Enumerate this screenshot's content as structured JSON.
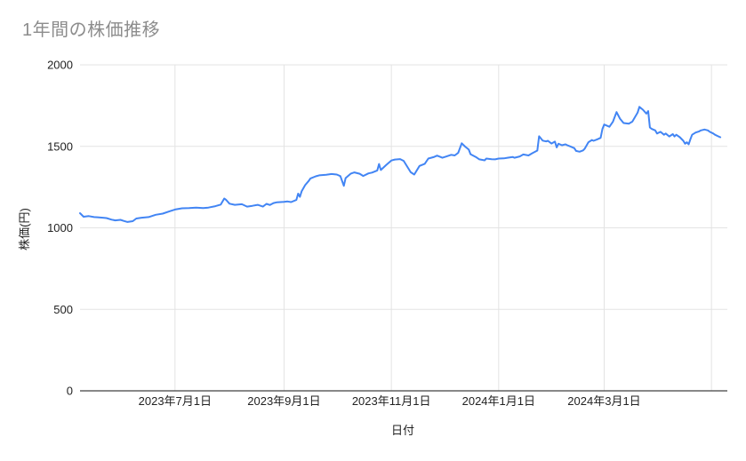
{
  "chart_data": {
    "type": "line",
    "title": "1年間の株価推移",
    "xlabel": "日付",
    "ylabel": "株価(円)",
    "ylim": [
      0,
      2000
    ],
    "y_ticks": [
      0,
      500,
      1000,
      1500,
      2000
    ],
    "x_axis_range": [
      "2023-05-08",
      "2024-05-09"
    ],
    "x_ticks": [
      {
        "date": "2023-07-01",
        "label": "2023年7月1日"
      },
      {
        "date": "2023-09-01",
        "label": "2023年9月1日"
      },
      {
        "date": "2023-11-01",
        "label": "2023年11月1日"
      },
      {
        "date": "2024-01-01",
        "label": "2024年1月1日"
      },
      {
        "date": "2024-03-01",
        "label": "2024年3月1日"
      },
      {
        "date": "2024-05-01",
        "label": ""
      }
    ],
    "grid": true,
    "legend": "none",
    "colors": {
      "line": "#4285f4",
      "grid": "#e3e3e3",
      "axis": "#424242",
      "title": "#8c8c8c",
      "tick_label": "#222222"
    },
    "series": [
      {
        "name": "株価",
        "dates": [
          "2023-05-08",
          "2023-05-10",
          "2023-05-13",
          "2023-05-16",
          "2023-05-18",
          "2023-05-21",
          "2023-05-23",
          "2023-05-26",
          "2023-05-28",
          "2023-05-31",
          "2023-06-02",
          "2023-06-04",
          "2023-06-07",
          "2023-06-09",
          "2023-06-12",
          "2023-06-16",
          "2023-06-20",
          "2023-06-24",
          "2023-06-28",
          "2023-07-01",
          "2023-07-05",
          "2023-07-09",
          "2023-07-13",
          "2023-07-17",
          "2023-07-20",
          "2023-07-24",
          "2023-07-27",
          "2023-07-29",
          "2023-07-30",
          "2023-08-01",
          "2023-08-04",
          "2023-08-08",
          "2023-08-11",
          "2023-08-14",
          "2023-08-17",
          "2023-08-20",
          "2023-08-22",
          "2023-08-24",
          "2023-08-26",
          "2023-08-28",
          "2023-09-01",
          "2023-09-03",
          "2023-09-05",
          "2023-09-08",
          "2023-09-09",
          "2023-09-10",
          "2023-09-11",
          "2023-09-13",
          "2023-09-15",
          "2023-09-16",
          "2023-09-19",
          "2023-09-21",
          "2023-09-25",
          "2023-09-28",
          "2023-10-01",
          "2023-10-03",
          "2023-10-05",
          "2023-10-06",
          "2023-10-09",
          "2023-10-11",
          "2023-10-14",
          "2023-10-16",
          "2023-10-19",
          "2023-10-21",
          "2023-10-24",
          "2023-10-25",
          "2023-10-26",
          "2023-10-29",
          "2023-11-01",
          "2023-11-03",
          "2023-11-06",
          "2023-11-08",
          "2023-11-12",
          "2023-11-14",
          "2023-11-17",
          "2023-11-20",
          "2023-11-22",
          "2023-11-25",
          "2023-11-27",
          "2023-11-30",
          "2023-12-02",
          "2023-12-05",
          "2023-12-07",
          "2023-12-09",
          "2023-12-11",
          "2023-12-13",
          "2023-12-15",
          "2023-12-16",
          "2023-12-19",
          "2023-12-21",
          "2023-12-24",
          "2023-12-25",
          "2023-12-28",
          "2023-12-30",
          "2024-01-01",
          "2024-01-04",
          "2024-01-06",
          "2024-01-09",
          "2024-01-10",
          "2024-01-13",
          "2024-01-15",
          "2024-01-18",
          "2024-01-20",
          "2024-01-23",
          "2024-01-24",
          "2024-01-26",
          "2024-01-28",
          "2024-01-29",
          "2024-01-31",
          "2024-02-02",
          "2024-02-03",
          "2024-02-04",
          "2024-02-06",
          "2024-02-08",
          "2024-02-09",
          "2024-02-11",
          "2024-02-13",
          "2024-02-14",
          "2024-02-16",
          "2024-02-18",
          "2024-02-19",
          "2024-02-21",
          "2024-02-23",
          "2024-02-24",
          "2024-02-26",
          "2024-02-28",
          "2024-02-29",
          "2024-03-01",
          "2024-03-04",
          "2024-03-06",
          "2024-03-08",
          "2024-03-10",
          "2024-03-12",
          "2024-03-15",
          "2024-03-17",
          "2024-03-20",
          "2024-03-21",
          "2024-03-23",
          "2024-03-25",
          "2024-03-26",
          "2024-03-27",
          "2024-03-28",
          "2024-03-30",
          "2024-03-31",
          "2024-04-02",
          "2024-04-04",
          "2024-04-05",
          "2024-04-07",
          "2024-04-09",
          "2024-04-10",
          "2024-04-11",
          "2024-04-13",
          "2024-04-15",
          "2024-04-16",
          "2024-04-17",
          "2024-04-18",
          "2024-04-19",
          "2024-04-20",
          "2024-04-22",
          "2024-04-24",
          "2024-04-25",
          "2024-04-27",
          "2024-04-29",
          "2024-04-30",
          "2024-05-02",
          "2024-05-03",
          "2024-05-05",
          "2024-05-06"
        ],
        "values": [
          1090,
          1068,
          1072,
          1066,
          1065,
          1062,
          1060,
          1050,
          1046,
          1049,
          1042,
          1036,
          1041,
          1057,
          1062,
          1066,
          1080,
          1087,
          1102,
          1112,
          1120,
          1121,
          1124,
          1121,
          1124,
          1133,
          1143,
          1180,
          1172,
          1148,
          1141,
          1145,
          1130,
          1135,
          1141,
          1130,
          1147,
          1140,
          1152,
          1157,
          1159,
          1162,
          1158,
          1171,
          1210,
          1190,
          1225,
          1262,
          1288,
          1303,
          1316,
          1322,
          1326,
          1330,
          1327,
          1317,
          1258,
          1305,
          1333,
          1340,
          1332,
          1318,
          1334,
          1339,
          1352,
          1392,
          1355,
          1385,
          1413,
          1419,
          1422,
          1411,
          1341,
          1327,
          1380,
          1393,
          1425,
          1434,
          1443,
          1430,
          1437,
          1448,
          1444,
          1460,
          1519,
          1498,
          1480,
          1452,
          1435,
          1420,
          1414,
          1425,
          1421,
          1420,
          1425,
          1426,
          1430,
          1435,
          1430,
          1438,
          1450,
          1444,
          1457,
          1474,
          1562,
          1535,
          1530,
          1534,
          1517,
          1529,
          1494,
          1516,
          1507,
          1512,
          1507,
          1498,
          1489,
          1472,
          1467,
          1475,
          1486,
          1525,
          1539,
          1534,
          1543,
          1552,
          1606,
          1634,
          1620,
          1652,
          1710,
          1670,
          1643,
          1639,
          1652,
          1707,
          1742,
          1725,
          1701,
          1716,
          1616,
          1607,
          1598,
          1579,
          1589,
          1571,
          1579,
          1561,
          1575,
          1561,
          1571,
          1556,
          1534,
          1516,
          1525,
          1512,
          1543,
          1571,
          1585,
          1592,
          1598,
          1603,
          1598,
          1589,
          1579,
          1571,
          1561,
          1556
        ]
      }
    ]
  }
}
